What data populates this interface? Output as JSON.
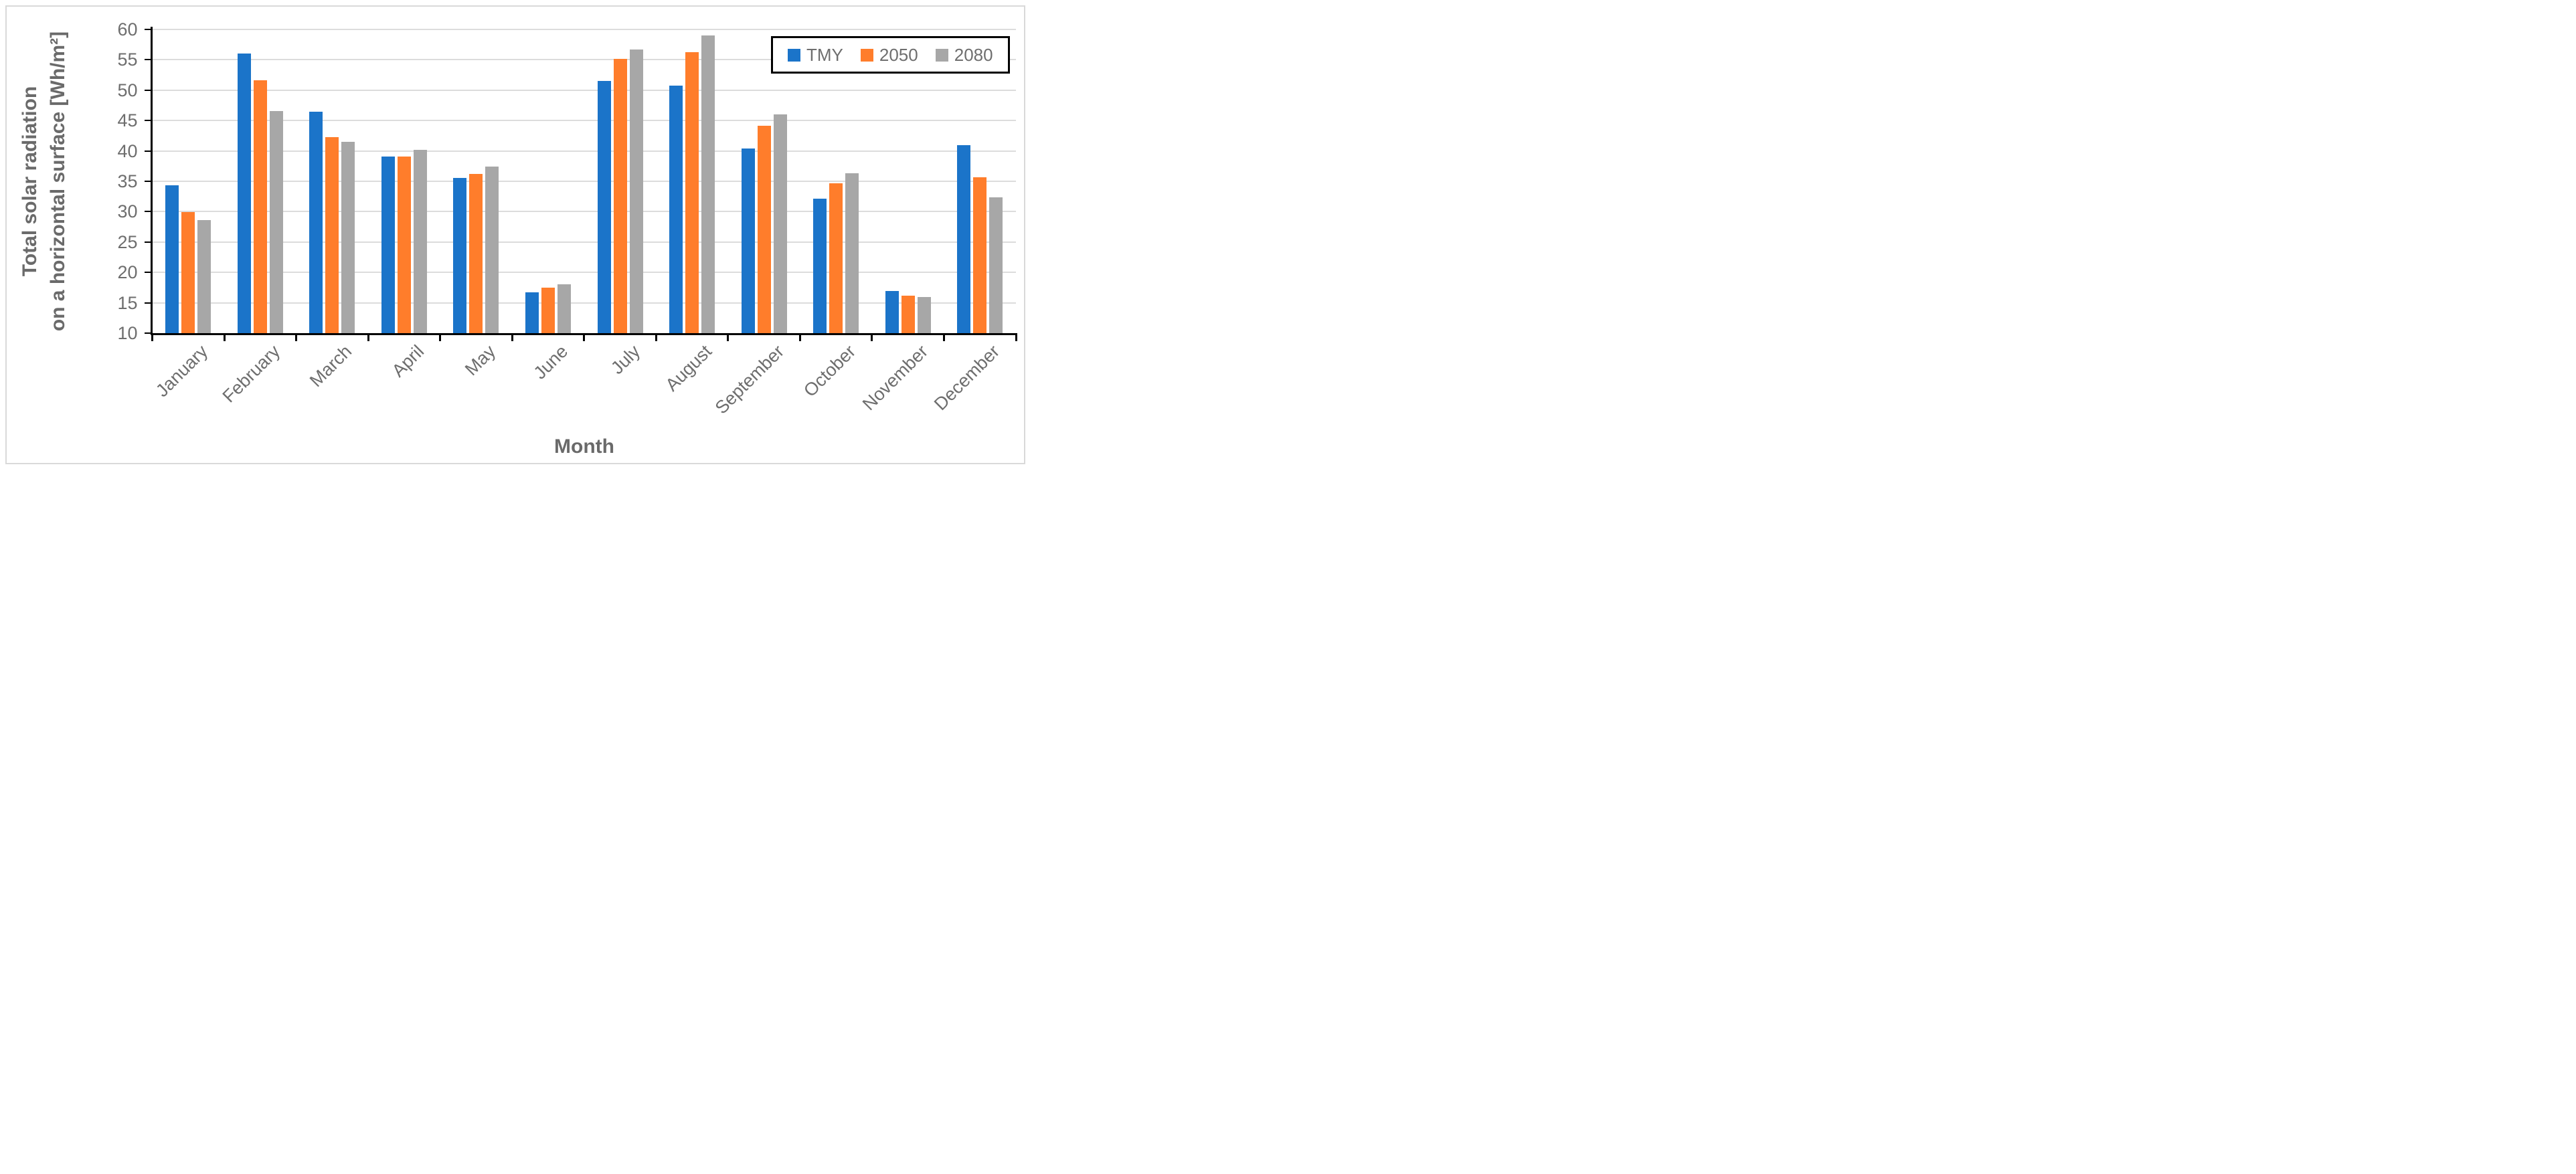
{
  "chart_data": {
    "type": "bar",
    "title": "",
    "xlabel": "Month",
    "ylabel_line1": "Total solar radiation",
    "ylabel_line2": "on a horizontal surface [Wh/m²]",
    "ylim": [
      10,
      60
    ],
    "yticks": [
      10,
      15,
      20,
      25,
      30,
      35,
      40,
      45,
      50,
      55,
      60
    ],
    "grid": true,
    "legend_position": "top-right",
    "categories": [
      "January",
      "February",
      "March",
      "April",
      "May",
      "June",
      "July",
      "August",
      "September",
      "October",
      "November",
      "December"
    ],
    "series": [
      {
        "name": "TMY",
        "color": "#1B74C9",
        "values": [
          34.3,
          56.0,
          46.4,
          39.1,
          35.6,
          16.7,
          51.5,
          50.8,
          40.4,
          32.1,
          16.9,
          40.9
        ]
      },
      {
        "name": "2050",
        "color": "#FF7D2B",
        "values": [
          29.9,
          51.6,
          42.3,
          39.1,
          36.2,
          17.5,
          55.1,
          56.3,
          44.1,
          34.7,
          16.2,
          35.7
        ]
      },
      {
        "name": "2080",
        "color": "#A7A7A7",
        "values": [
          28.6,
          46.6,
          41.5,
          40.2,
          37.4,
          18.0,
          56.7,
          59.0,
          46.0,
          36.3,
          16.0,
          32.4
        ]
      }
    ]
  },
  "colors": {
    "gridline": "#DCDCDC",
    "axis_line": "#000000",
    "tick_text": "#6E6E6E",
    "title_text": "#6A6A6A",
    "figure_border": "#D9D9D9",
    "background": "#FFFFFF"
  }
}
